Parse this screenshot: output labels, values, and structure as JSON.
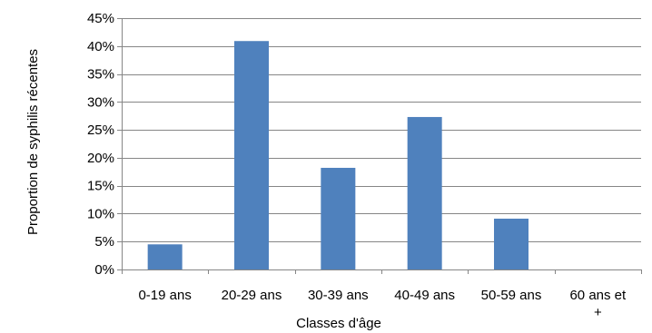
{
  "chart_data": {
    "type": "bar",
    "title": "",
    "xlabel": "Classes d'âge",
    "ylabel": "Proportion de syphilis récentes",
    "categories": [
      "0-19 ans",
      "20-29 ans",
      "30-39 ans",
      "40-49 ans",
      "50-59 ans",
      "60 ans et +"
    ],
    "category_lines": [
      [
        "0-19 ans"
      ],
      [
        "20-29 ans"
      ],
      [
        "30-39 ans"
      ],
      [
        "40-49 ans"
      ],
      [
        "50-59 ans"
      ],
      [
        "60 ans et",
        "+"
      ]
    ],
    "values": [
      4.5,
      40.9,
      18.2,
      27.3,
      9.1,
      0
    ],
    "ylim": [
      0,
      45
    ],
    "yticks": [
      0,
      5,
      10,
      15,
      20,
      25,
      30,
      35,
      40,
      45
    ],
    "ytick_labels": [
      "0%",
      "5%",
      "10%",
      "15%",
      "20%",
      "25%",
      "30%",
      "35%",
      "40%",
      "45%"
    ],
    "grid": true,
    "legend": "none",
    "colors": {
      "bar": "#4f81bd",
      "grid": "#868686",
      "axis": "#868686",
      "text": "#000000"
    }
  }
}
